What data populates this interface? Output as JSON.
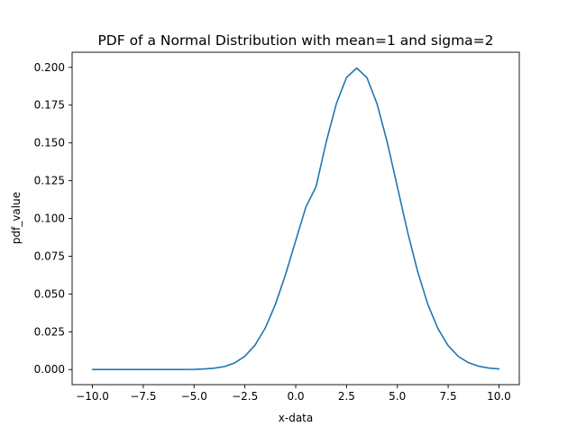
{
  "chart_data": {
    "type": "line",
    "title": "PDF of a Normal Distribution with mean=1 and sigma=2",
    "xlabel": "x-data",
    "ylabel": "pdf_value",
    "xlim": [
      -11,
      11
    ],
    "ylim": [
      -0.01,
      0.21
    ],
    "xticks": [
      -10,
      -7.5,
      -5,
      -2.5,
      0,
      2.5,
      5,
      7.5,
      10
    ],
    "xtick_labels": [
      "−10.0",
      "−7.5",
      "−5.0",
      "−2.5",
      "0.0",
      "2.5",
      "5.0",
      "7.5",
      "10.0"
    ],
    "yticks": [
      0,
      0.025,
      0.05,
      0.075,
      0.1,
      0.125,
      0.15,
      0.175,
      0.2
    ],
    "ytick_labels": [
      "0.000",
      "0.025",
      "0.050",
      "0.075",
      "0.100",
      "0.125",
      "0.150",
      "0.175",
      "0.200"
    ],
    "grid": false,
    "series": [
      {
        "color": "#1f77b4",
        "x": [
          -10,
          -9,
          -8,
          -7,
          -6,
          -5,
          -4.5,
          -4,
          -3.5,
          -3,
          -2.5,
          -2,
          -1.5,
          -1,
          -0.5,
          0,
          0.5,
          1,
          1.5,
          2,
          2.5,
          3,
          3.5,
          4,
          4.5,
          5,
          5.5,
          6,
          6.5,
          7,
          7.5,
          8,
          8.5,
          9,
          9.5,
          10
        ],
        "y": [
          0,
          0,
          0,
          0,
          0,
          0.0001,
          0.0004,
          0.0009,
          0.002,
          0.0044,
          0.0088,
          0.0162,
          0.0274,
          0.0431,
          0.0629,
          0.0853,
          0.1075,
          0.121,
          0.1506,
          0.176,
          0.1933,
          0.1995,
          0.1933,
          0.176,
          0.1506,
          0.121,
          0.0913,
          0.0648,
          0.0431,
          0.027,
          0.0158,
          0.0087,
          0.0045,
          0.0022,
          0.001,
          0.0004
        ]
      }
    ]
  }
}
